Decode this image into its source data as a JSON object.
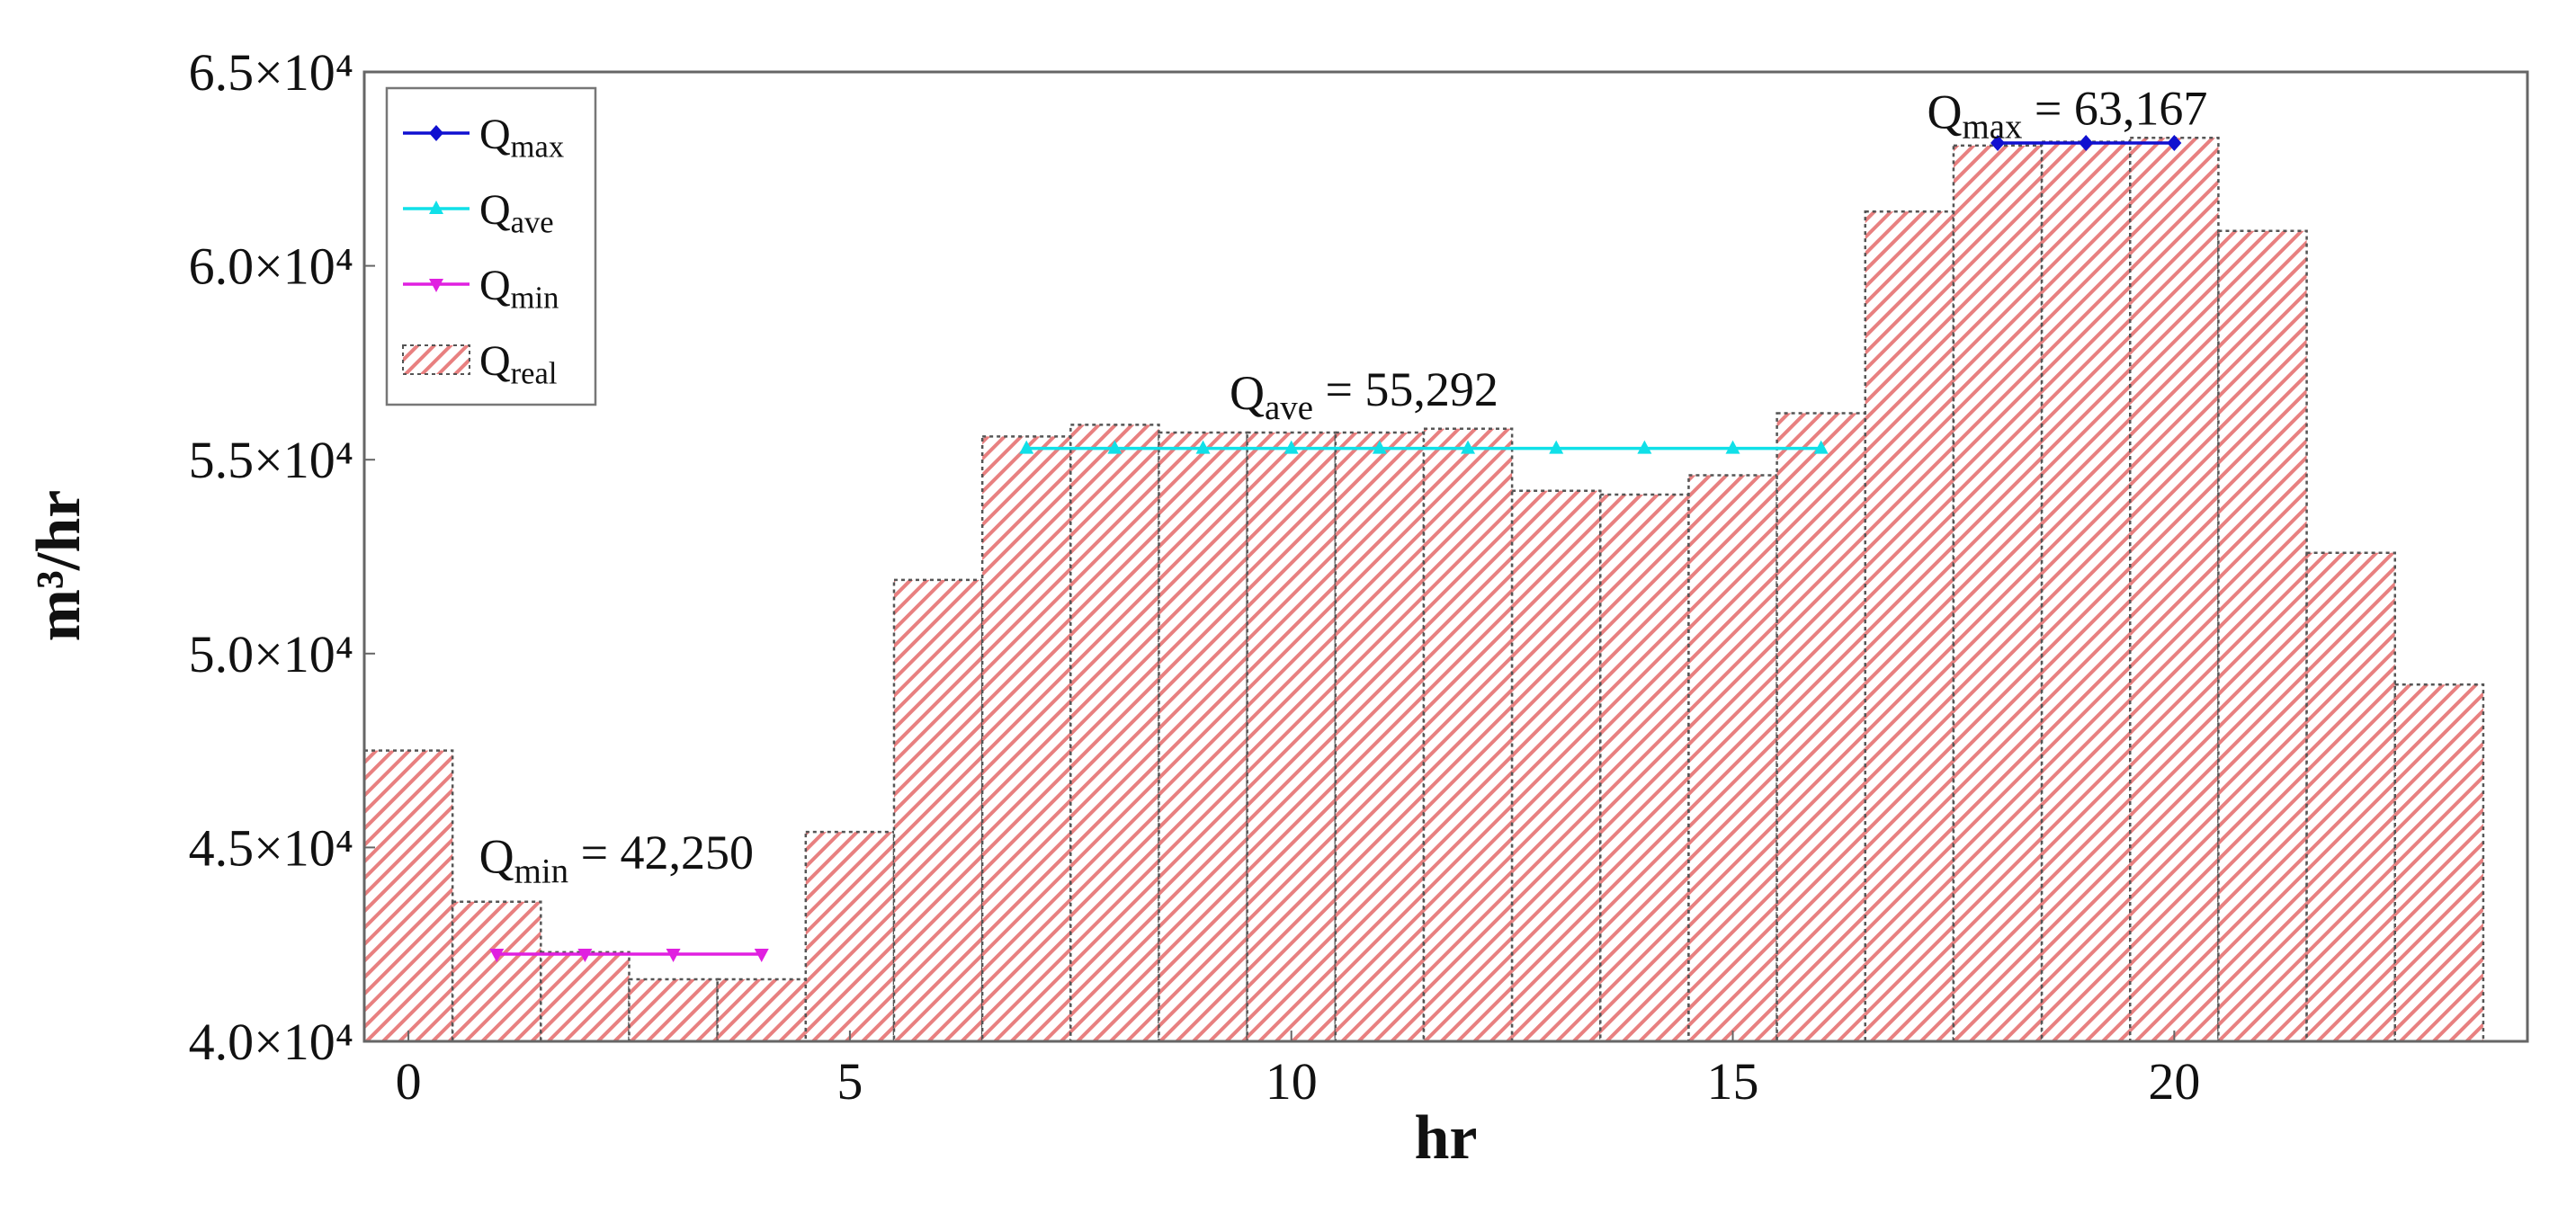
{
  "chart_data": {
    "type": "bar",
    "xlabel": "hr",
    "ylabel": "m³/hr",
    "xlim": [
      -0.5,
      24
    ],
    "ylim": [
      40000,
      65000
    ],
    "x_ticks": [
      0,
      5,
      10,
      15,
      20
    ],
    "x_tick_labels": [
      "0",
      "5",
      "10",
      "15",
      "20"
    ],
    "y_ticks": [
      40000,
      45000,
      50000,
      55000,
      60000,
      65000
    ],
    "y_tick_labels": [
      "4.0×10⁴",
      "4.5×10⁴",
      "5.0×10⁴",
      "5.5×10⁴",
      "6.0×10⁴",
      "6.5×10⁴"
    ],
    "legend": {
      "position": "top-left"
    },
    "bars": {
      "name": "Q_real",
      "label_main": "Q",
      "label_sub": "real",
      "color": "#e88080",
      "x": [
        0,
        1,
        2,
        3,
        4,
        5,
        6,
        7,
        8,
        9,
        10,
        11,
        12,
        13,
        14,
        15,
        16,
        17,
        18,
        19,
        20,
        21,
        22,
        23
      ],
      "values": [
        47500,
        43600,
        42300,
        41600,
        41600,
        45400,
        51900,
        55600,
        55900,
        55700,
        55700,
        55700,
        55800,
        54200,
        54100,
        54600,
        56200,
        61400,
        63100,
        63200,
        63300,
        60900,
        52600,
        49200
      ]
    },
    "lines": [
      {
        "name": "Q_max",
        "label_main": "Q",
        "label_sub": "max",
        "color": "#1010d0",
        "marker": "diamond",
        "y": 63167,
        "x": [
          18,
          19,
          20
        ]
      },
      {
        "name": "Q_ave",
        "label_main": "Q",
        "label_sub": "ave",
        "color": "#10e0e8",
        "marker": "triangle-up",
        "y": 55292,
        "x": [
          7,
          8,
          9,
          10,
          11,
          12,
          13,
          14,
          15,
          16
        ]
      },
      {
        "name": "Q_min",
        "label_main": "Q",
        "label_sub": "min",
        "color": "#e020e0",
        "marker": "triangle-down",
        "y": 42250,
        "x": [
          1,
          2,
          3,
          4
        ]
      }
    ],
    "annotations": [
      {
        "id": "annot-max",
        "main": "Q",
        "sub": "max",
        "text": " = 63,167",
        "x": 17.2,
        "y": 63550
      },
      {
        "id": "annot-ave",
        "main": "Q",
        "sub": "ave",
        "text": " = 55,292",
        "x": 9.3,
        "y": 56300
      },
      {
        "id": "annot-min",
        "main": "Q",
        "sub": "min",
        "text": " = 42,250",
        "x": 0.8,
        "y": 44350
      }
    ]
  }
}
